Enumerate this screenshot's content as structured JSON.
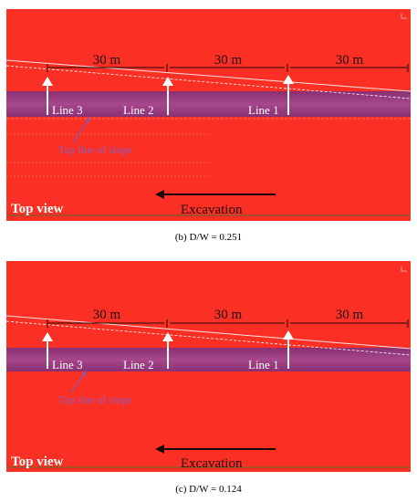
{
  "colors": {
    "ground": "#fc2f25",
    "excavation_strip": "#9a3e7e",
    "arrow_white": "#ffffff",
    "arrow_dark": "#2b0c0c",
    "slope_label": "#8b5fbe"
  },
  "panels": [
    {
      "id": "b",
      "caption": "(b) D/W = 0.251",
      "dimensions": [
        "30 m",
        "30 m",
        "30 m"
      ],
      "lines": [
        "Line 3",
        "Line 2",
        "Line 1"
      ],
      "slope_label": "Top line of slope",
      "view_label": "Top view",
      "excavation_label": "Excavation"
    },
    {
      "id": "c",
      "caption": "(c) D/W = 0.124",
      "dimensions": [
        "30 m",
        "30 m",
        "30 m"
      ],
      "lines": [
        "Line 3",
        "Line 2",
        "Line 1"
      ],
      "slope_label": "Top line of slope",
      "view_label": "Top view",
      "excavation_label": "Excavation"
    }
  ]
}
